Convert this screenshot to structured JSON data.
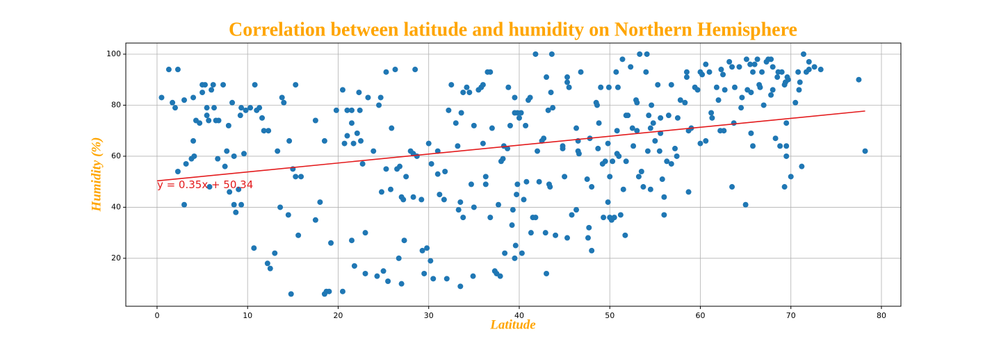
{
  "chart_data": {
    "type": "scatter",
    "title": "Correlation between latitude and humidity on Northern Hemisphere",
    "x_label": "Latitude",
    "y_label": "Humidity (%)",
    "xlim": [
      -3.45,
      82.15
    ],
    "ylim": [
      1.2,
      104.35
    ],
    "xticks": [
      0,
      10,
      20,
      30,
      40,
      50,
      60,
      70,
      80
    ],
    "yticks": [
      20,
      40,
      60,
      80,
      100
    ],
    "grid": true,
    "series": [
      {
        "color": "#1f77b4",
        "x": [
          0.5,
          1.3,
          1.7,
          2,
          2.3,
          2.3,
          3,
          3,
          3.2,
          3.8,
          4,
          4,
          4.1,
          4.3,
          4.7,
          5,
          5,
          5.3,
          5.5,
          5.5,
          5.7,
          5.8,
          6,
          6.2,
          6.3,
          6.5,
          6.7,
          6.8,
          7.3,
          7.5,
          7.7,
          7.9,
          8,
          8.3,
          8.5,
          8.5,
          8.7,
          9,
          9.2,
          9.3,
          9.3,
          9.6,
          9.8,
          10.3,
          10.7,
          10.8,
          11,
          11.3,
          11.6,
          11.8,
          12.2,
          12.3,
          12.5,
          13,
          13.3,
          13.6,
          13.8,
          14,
          14.5,
          14.6,
          14.8,
          15,
          15.3,
          15.3,
          15.6,
          15.9,
          17.5,
          17.5,
          18,
          18.5,
          18.5,
          18.7,
          19,
          19.2,
          19.8,
          20.5,
          20.5,
          20.7,
          21,
          21,
          21.5,
          21.5,
          21.5,
          21.7,
          21.8,
          22.1,
          22.3,
          22.4,
          22.5,
          22.7,
          23,
          23,
          23.3,
          23.9,
          24.3,
          24.5,
          24.7,
          24.8,
          25,
          25.3,
          25.3,
          25.5,
          25.8,
          25.9,
          26.3,
          26.5,
          26.7,
          26.8,
          27,
          27,
          27.2,
          27.3,
          27.5,
          28,
          28.3,
          28.3,
          28.5,
          28.7,
          29.2,
          29.3,
          29.5,
          29.8,
          30,
          30.2,
          30.3,
          30.5,
          31,
          31,
          31.2,
          31.7,
          31.8,
          32,
          32.2,
          32.5,
          33,
          33.2,
          33.3,
          33.5,
          33.5,
          33.6,
          33.8,
          33.8,
          34.2,
          34.5,
          34.7,
          34.9,
          35,
          35,
          35.5,
          35.8,
          36,
          36,
          36.3,
          36.3,
          36.5,
          36.8,
          36.8,
          37,
          37.3,
          37.5,
          37.7,
          37.9,
          38,
          38.2,
          38.3,
          38.4,
          38.7,
          38.8,
          39,
          39.2,
          39.3,
          39.5,
          39.5,
          39.5,
          39.6,
          39.8,
          39.8,
          39.7,
          40,
          40.2,
          40.3,
          40.5,
          40.7,
          40.8,
          41,
          41.2,
          41.3,
          41.5,
          41.8,
          41.8,
          42,
          42.2,
          42.5,
          42.7,
          42.9,
          43,
          43,
          43.2,
          43.3,
          43.4,
          43.5,
          43.6,
          43.7,
          44,
          44.8,
          44.8,
          45,
          45.3,
          45.3,
          45.3,
          45.5,
          45.8,
          46.3,
          46.3,
          46.5,
          46.5,
          46.6,
          46.8,
          47.5,
          47.6,
          47.7,
          47.8,
          48,
          48,
          48.5,
          48.6,
          48.7,
          48.8,
          49,
          49.2,
          49.3,
          49.5,
          49.8,
          49.8,
          49.9,
          50,
          50,
          50.2,
          50.3,
          50.5,
          50.7,
          50.8,
          50.8,
          50.9,
          51,
          51.2,
          51.4,
          51.5,
          51.7,
          51.8,
          51.8,
          52,
          52.3,
          52.5,
          52.6,
          52.9,
          53,
          53,
          53.2,
          53.3,
          53.5,
          53.7,
          54,
          54.1,
          54.2,
          54.3,
          54.5,
          54.5,
          54.6,
          54.8,
          55,
          55.3,
          55.5,
          55.6,
          55.6,
          55.8,
          56,
          56,
          56.3,
          56.5,
          56.8,
          56.8,
          57.2,
          57.4,
          57.5,
          57.8,
          58.3,
          58.5,
          58.5,
          58.7,
          58.7,
          59,
          59.4,
          59.7,
          60,
          60,
          60.2,
          60.6,
          60.6,
          61,
          61.2,
          61.3,
          61.8,
          62,
          62.2,
          62.3,
          62.5,
          62.6,
          62.7,
          63.2,
          63.5,
          63.5,
          63.7,
          63.8,
          64.3,
          64.5,
          64.6,
          65,
          65.1,
          65.2,
          65.5,
          65.6,
          65.6,
          65.8,
          65.8,
          66,
          66.3,
          66.5,
          66.6,
          66.8,
          67,
          67.3,
          67.5,
          67.8,
          67.8,
          68,
          68,
          68.3,
          68.5,
          68.6,
          68.8,
          69,
          69.3,
          69.3,
          69.4,
          69.5,
          69.5,
          69.5,
          69.6,
          69.7,
          70,
          70.5,
          70.8,
          70.9,
          71,
          71.2,
          71.4,
          71.7,
          72,
          72,
          72.6,
          73.3,
          77.5,
          78.2
        ],
        "values": [
          83,
          94,
          81,
          79,
          94,
          54,
          41,
          82,
          57,
          59,
          66,
          83,
          60,
          74,
          73,
          88,
          85,
          88,
          76,
          79,
          74,
          48,
          86,
          88,
          79,
          74,
          59,
          74,
          88,
          56,
          62,
          72,
          46,
          81,
          60,
          41,
          38,
          47,
          76,
          79,
          41,
          61,
          78,
          79,
          24,
          88,
          78,
          79,
          75,
          70,
          18,
          70,
          16,
          22,
          62,
          40,
          83,
          81,
          37,
          66,
          6,
          55,
          88,
          52,
          29,
          52,
          35,
          74,
          42,
          66,
          6,
          7,
          7,
          26,
          78,
          7,
          86,
          65,
          68,
          78,
          27,
          73,
          78,
          65,
          17,
          69,
          85,
          78,
          66,
          57,
          30,
          14,
          83,
          62,
          13,
          80,
          83,
          46,
          15,
          55,
          93,
          11,
          47,
          71,
          94,
          55,
          20,
          56,
          44,
          10,
          43,
          27,
          52,
          62,
          61,
          44,
          94,
          60,
          43,
          23,
          14,
          24,
          65,
          19,
          57,
          12,
          53,
          62,
          45,
          43,
          54,
          12,
          78,
          88,
          73,
          64,
          39,
          9,
          42,
          77,
          36,
          85,
          87,
          85,
          49,
          13,
          40,
          72,
          86,
          87,
          65,
          88,
          49,
          52,
          93,
          93,
          36,
          71,
          15,
          14,
          41,
          13,
          58,
          59,
          64,
          22,
          63,
          87,
          72,
          33,
          39,
          83,
          77,
          20,
          25,
          77,
          49,
          45,
          75,
          77,
          22,
          43,
          72,
          50,
          82,
          83,
          30,
          36,
          100,
          36,
          62,
          50,
          66,
          67,
          30,
          14,
          91,
          78,
          49,
          48,
          85,
          100,
          79,
          29,
          64,
          63,
          52,
          89,
          91,
          28,
          87,
          37,
          71,
          39,
          66,
          62,
          61,
          93,
          51,
          28,
          32,
          67,
          23,
          48,
          81,
          80,
          63,
          73,
          87,
          57,
          36,
          58,
          65,
          42,
          87,
          36,
          52,
          35,
          58,
          36,
          93,
          61,
          70,
          87,
          60,
          37,
          98,
          47,
          29,
          58,
          76,
          76,
          95,
          71,
          64,
          82,
          81,
          70,
          52,
          100,
          54,
          48,
          93,
          100,
          62,
          76,
          71,
          47,
          80,
          73,
          66,
          88,
          62,
          75,
          69,
          51,
          44,
          37,
          58,
          76,
          57,
          88,
          63,
          60,
          75,
          82,
          81,
          93,
          91,
          46,
          70,
          71,
          87,
          86,
          93,
          65,
          92,
          96,
          66,
          93,
          77,
          75,
          87,
          82,
          70,
          94,
          92,
          70,
          86,
          97,
          95,
          48,
          73,
          87,
          95,
          79,
          83,
          41,
          98,
          86,
          96,
          69,
          85,
          64,
          93,
          96,
          98,
          88,
          87,
          93,
          80,
          97,
          98,
          98,
          84,
          86,
          95,
          67,
          91,
          93,
          64,
          93,
          48,
          88,
          89,
          64,
          73,
          60,
          91,
          90,
          52,
          81,
          93,
          86,
          89,
          56,
          100,
          93,
          94,
          97,
          95,
          94,
          90,
          62
        ]
      }
    ],
    "trend_line": {
      "equation": "y = 0.35x + 50.34",
      "x": [
        0,
        78.2
      ],
      "values": [
        50.34,
        77.71
      ],
      "color": "#e31a1c"
    }
  }
}
